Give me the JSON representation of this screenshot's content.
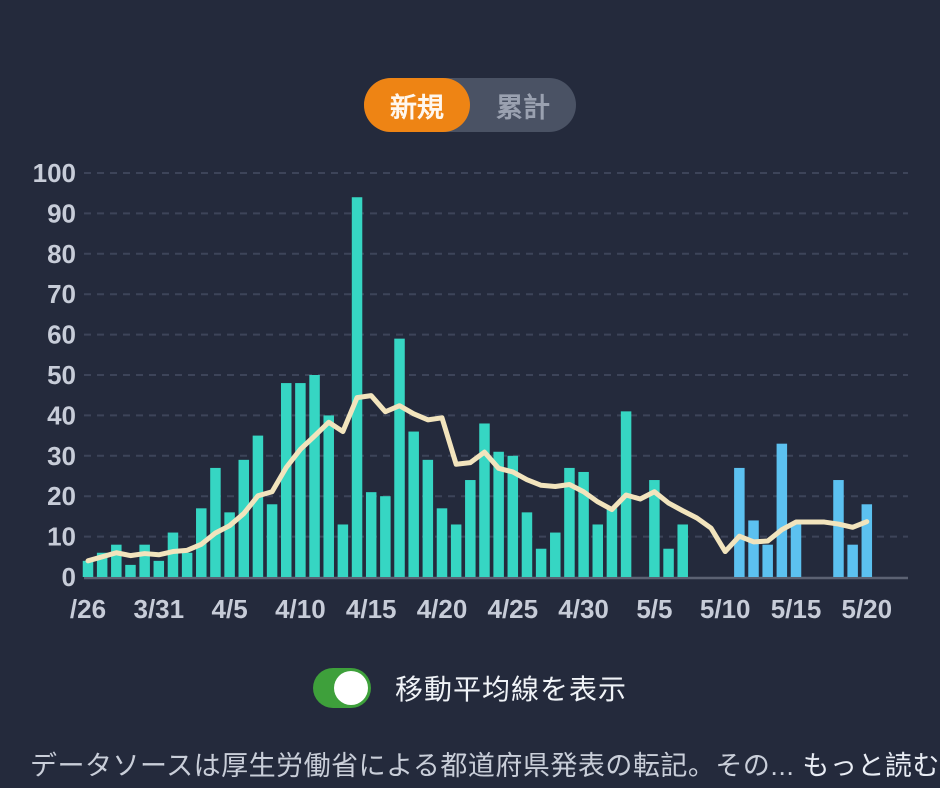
{
  "period_toggle": {
    "new_label": "新規",
    "cumulative_label": "累計",
    "selected": "新規",
    "active_color": "#ee8414",
    "track_color": "#4a5264"
  },
  "chart_data": {
    "type": "bar",
    "title": "",
    "xlabel": "",
    "ylabel": "",
    "ylim": [
      0,
      100
    ],
    "y_ticks": [
      0,
      10,
      20,
      30,
      40,
      50,
      60,
      70,
      80,
      90,
      100
    ],
    "grid": "dashed horizontal",
    "x_tick_labels": [
      "/26",
      "3/31",
      "4/5",
      "4/10",
      "4/15",
      "4/20",
      "4/25",
      "4/30",
      "5/5",
      "5/10",
      "5/15",
      "5/20"
    ],
    "x_tick_every": 5,
    "dates": [
      "3/26",
      "3/27",
      "3/28",
      "3/29",
      "3/30",
      "3/31",
      "4/1",
      "4/2",
      "4/3",
      "4/4",
      "4/5",
      "4/6",
      "4/7",
      "4/8",
      "4/9",
      "4/10",
      "4/11",
      "4/12",
      "4/13",
      "4/14",
      "4/15",
      "4/16",
      "4/17",
      "4/18",
      "4/19",
      "4/20",
      "4/21",
      "4/22",
      "4/23",
      "4/24",
      "4/25",
      "4/26",
      "4/27",
      "4/28",
      "4/29",
      "4/30",
      "5/1",
      "5/2",
      "5/3",
      "5/4",
      "5/5",
      "5/6",
      "5/7",
      "5/8",
      "5/9",
      "5/10",
      "5/11",
      "5/12",
      "5/13",
      "5/14",
      "5/15",
      "5/16",
      "5/17",
      "5/18",
      "5/19",
      "5/20"
    ],
    "values": [
      4,
      6,
      8,
      3,
      8,
      4,
      11,
      6,
      17,
      27,
      16,
      29,
      35,
      18,
      48,
      48,
      50,
      40,
      13,
      94,
      21,
      20,
      59,
      36,
      29,
      17,
      13,
      24,
      38,
      31,
      30,
      16,
      7,
      11,
      27,
      26,
      13,
      17,
      41,
      0,
      24,
      7,
      13,
      0,
      0,
      0,
      27,
      14,
      8,
      33,
      13,
      0,
      0,
      24,
      8,
      18
    ],
    "series": [
      {
        "name": "daily-new-cases-bars",
        "values": [
          4,
          6,
          8,
          3,
          8,
          4,
          11,
          6,
          17,
          27,
          16,
          29,
          35,
          18,
          48,
          48,
          50,
          40,
          13,
          94,
          21,
          20,
          59,
          36,
          29,
          17,
          13,
          24,
          38,
          31,
          30,
          16,
          7,
          11,
          27,
          26,
          13,
          17,
          41,
          0,
          24,
          7,
          13,
          0,
          0,
          0,
          27,
          14,
          8,
          33,
          13,
          0,
          0,
          24,
          8,
          18
        ]
      },
      {
        "name": "7day-moving-average-line",
        "values": [
          4.0,
          5.0,
          6.0,
          5.3,
          5.8,
          5.5,
          6.3,
          6.6,
          8.1,
          10.9,
          12.7,
          15.7,
          20.1,
          21.1,
          27.1,
          31.6,
          34.9,
          38.3,
          36.0,
          44.4,
          44.9,
          40.9,
          42.4,
          40.4,
          38.9,
          39.4,
          27.9,
          28.3,
          30.9,
          26.9,
          26.0,
          24.1,
          22.7,
          22.4,
          22.9,
          21.1,
          18.6,
          16.7,
          20.3,
          19.3,
          21.1,
          18.3,
          16.4,
          14.6,
          12.1,
          6.3,
          10.1,
          8.7,
          8.9,
          11.7,
          13.6,
          13.6,
          13.6,
          13.1,
          12.3,
          13.7
        ]
      }
    ],
    "recent_color_start_index": 46,
    "legend_position": "none",
    "colors": {
      "bar": "#36d6c3",
      "bar_recent": "#5cc1f0",
      "ma_line": "#f2e4bd",
      "grid_line": "#3d4459",
      "baseline": "#5c6273",
      "axis_text": "#c7ccd8",
      "background": "#242a3c"
    }
  },
  "ma_toggle": {
    "label": "移動平均線を表示",
    "state": "on",
    "on_color": "#3ea03b"
  },
  "footer": {
    "text": "データソースは厚生労働省による都道府県発表の転記。その...",
    "link_label": "もっと読む"
  }
}
